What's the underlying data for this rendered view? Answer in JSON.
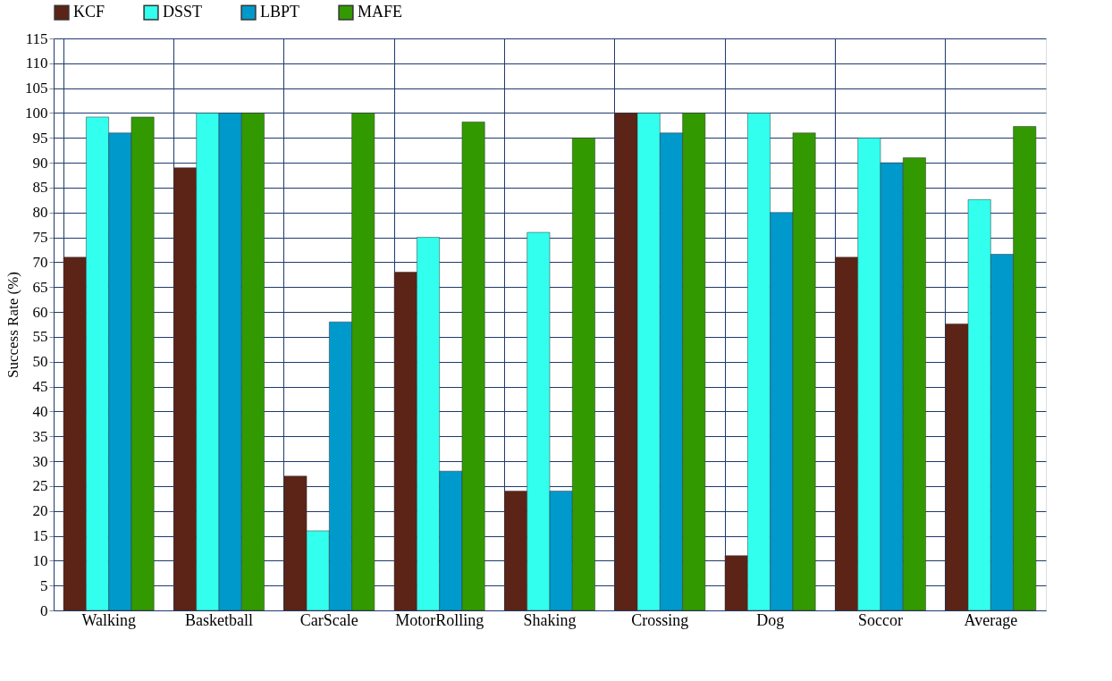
{
  "chart_data": {
    "type": "bar",
    "ylabel": "Success Rate (%)",
    "categories": [
      "Walking",
      "Basketball",
      "CarScale",
      "MotorRolling",
      "Shaking",
      "Crossing",
      "Dog",
      "Soccor",
      "Average"
    ],
    "series": [
      {
        "name": "KCF",
        "color": "#5c2416",
        "values": [
          71,
          89,
          27,
          68,
          24,
          100,
          11,
          71,
          57.6
        ]
      },
      {
        "name": "DSST",
        "color": "#33ffee",
        "values": [
          99.2,
          100,
          16,
          75,
          76,
          100,
          100,
          95,
          82.6
        ]
      },
      {
        "name": "LBPT",
        "color": "#0099cc",
        "values": [
          96,
          100,
          58,
          28,
          24,
          96,
          80,
          90,
          71.6
        ]
      },
      {
        "name": "MAFE",
        "color": "#339900",
        "values": [
          99.2,
          100,
          100,
          98.2,
          95,
          100,
          96,
          91,
          97.3
        ]
      }
    ],
    "ylim": [
      0,
      115
    ],
    "yticks": [
      0,
      5,
      10,
      15,
      20,
      25,
      30,
      35,
      40,
      45,
      50,
      55,
      60,
      65,
      70,
      75,
      80,
      85,
      90,
      95,
      100,
      105,
      110,
      115
    ],
    "grid": true,
    "legend": "top left"
  }
}
